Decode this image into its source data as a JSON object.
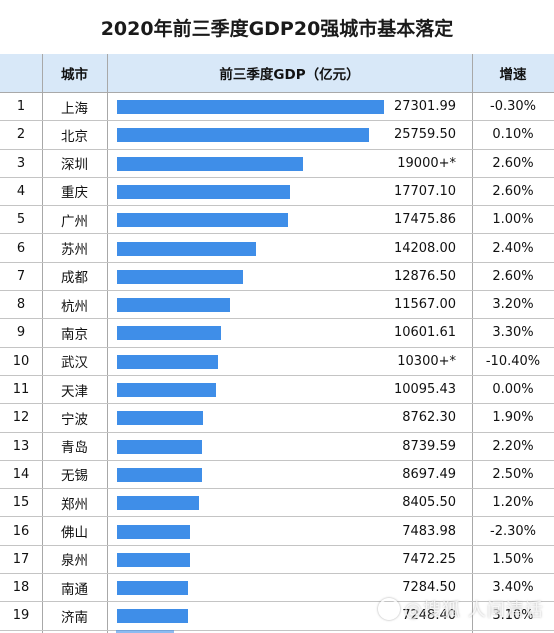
{
  "title": "2020年前三季度GDP20强城市基本落定",
  "headers": {
    "rank": "",
    "city": "城市",
    "gdp": "前三季度GDP（亿元）",
    "growth": "增速"
  },
  "chart_data": {
    "type": "table",
    "columns": [
      "",
      "城市",
      "前三季度GDP（亿元）",
      "增速"
    ],
    "max_value": 27301.99,
    "rows": [
      {
        "rank": "1",
        "city": "上海",
        "gdp_text": "27301.99",
        "gdp": 27301.99,
        "growth": "-0.30%"
      },
      {
        "rank": "2",
        "city": "北京",
        "gdp_text": "25759.50",
        "gdp": 25759.5,
        "growth": "0.10%"
      },
      {
        "rank": "3",
        "city": "深圳",
        "gdp_text": "19000+*",
        "gdp": 19000,
        "growth": "2.60%"
      },
      {
        "rank": "4",
        "city": "重庆",
        "gdp_text": "17707.10",
        "gdp": 17707.1,
        "growth": "2.60%"
      },
      {
        "rank": "5",
        "city": "广州",
        "gdp_text": "17475.86",
        "gdp": 17475.86,
        "growth": "1.00%"
      },
      {
        "rank": "6",
        "city": "苏州",
        "gdp_text": "14208.00",
        "gdp": 14208.0,
        "growth": "2.40%"
      },
      {
        "rank": "7",
        "city": "成都",
        "gdp_text": "12876.50",
        "gdp": 12876.5,
        "growth": "2.60%"
      },
      {
        "rank": "8",
        "city": "杭州",
        "gdp_text": "11567.00",
        "gdp": 11567.0,
        "growth": "3.20%"
      },
      {
        "rank": "9",
        "city": "南京",
        "gdp_text": "10601.61",
        "gdp": 10601.61,
        "growth": "3.30%"
      },
      {
        "rank": "10",
        "city": "武汉",
        "gdp_text": "10300+*",
        "gdp": 10300,
        "growth": "-10.40%"
      },
      {
        "rank": "11",
        "city": "天津",
        "gdp_text": "10095.43",
        "gdp": 10095.43,
        "growth": "0.00%"
      },
      {
        "rank": "12",
        "city": "宁波",
        "gdp_text": "8762.30",
        "gdp": 8762.3,
        "growth": "1.90%"
      },
      {
        "rank": "13",
        "city": "青岛",
        "gdp_text": "8739.59",
        "gdp": 8739.59,
        "growth": "2.20%"
      },
      {
        "rank": "14",
        "city": "无锡",
        "gdp_text": "8697.49",
        "gdp": 8697.49,
        "growth": "2.50%"
      },
      {
        "rank": "15",
        "city": "郑州",
        "gdp_text": "8405.50",
        "gdp": 8405.5,
        "growth": "1.20%"
      },
      {
        "rank": "16",
        "city": "佛山",
        "gdp_text": "7483.98",
        "gdp": 7483.98,
        "growth": "-2.30%"
      },
      {
        "rank": "17",
        "city": "泉州",
        "gdp_text": "7472.25",
        "gdp": 7472.25,
        "growth": "1.50%"
      },
      {
        "rank": "18",
        "city": "南通",
        "gdp_text": "7284.50",
        "gdp": 7284.5,
        "growth": "3.40%"
      },
      {
        "rank": "19",
        "city": "济南",
        "gdp_text": "7248.40",
        "gdp": 7248.4,
        "growth": "3.10%"
      }
    ]
  },
  "colors": {
    "bar": "#3f8ee8",
    "header_bg": "#d8e8f8"
  },
  "watermark": "@搜狐 人间清话"
}
